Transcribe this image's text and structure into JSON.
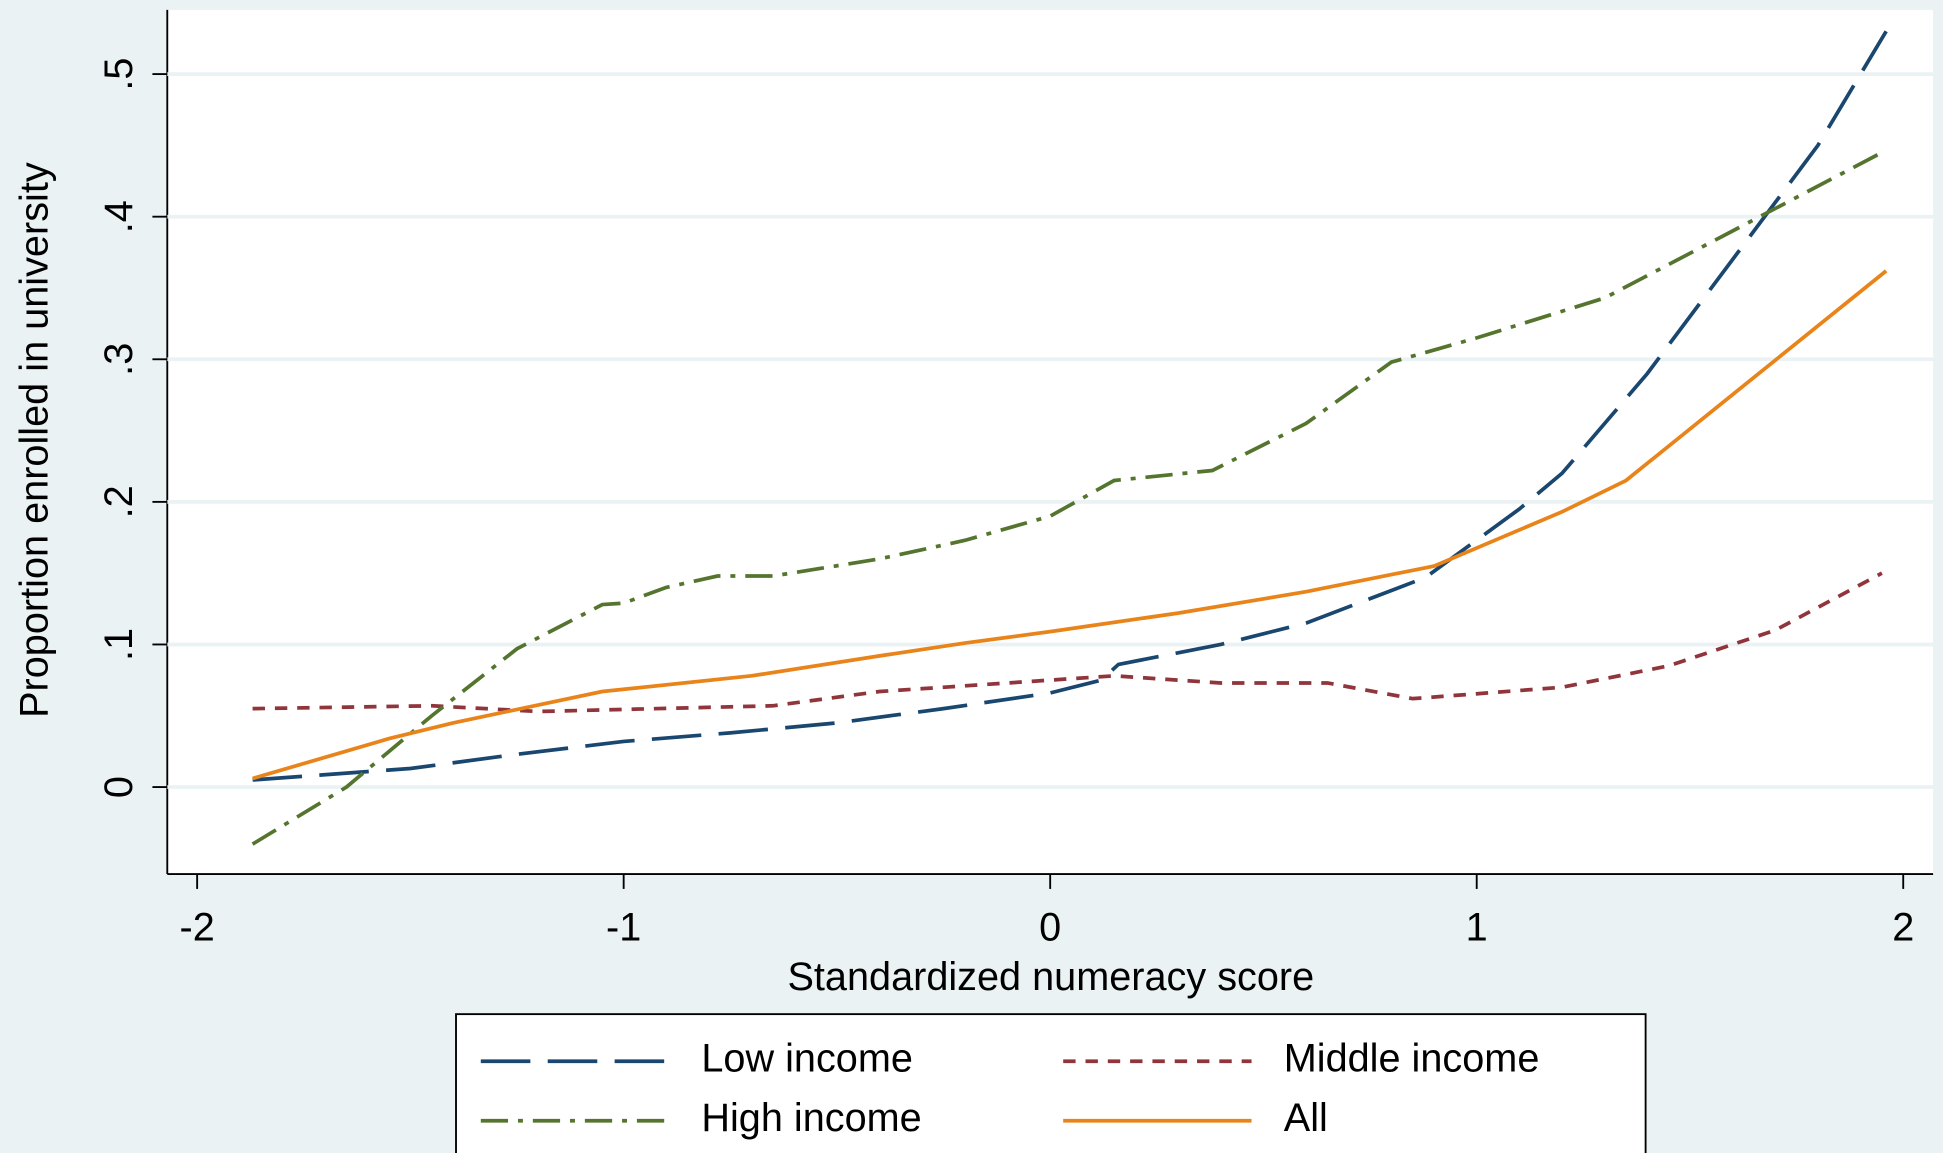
{
  "chart_data": {
    "type": "line",
    "x_label": "Standardized numeracy score",
    "y_label": "Proportion enrolled in university",
    "xlim": [
      -2.07,
      2.07
    ],
    "xticks": [
      -2,
      -1,
      0,
      1,
      2
    ],
    "ylim": [
      -0.061,
      0.545
    ],
    "yticks": [
      0,
      {
        "value": 0.1,
        "label": ".1"
      },
      {
        "value": 0.2,
        "label": ".2"
      },
      {
        "value": 0.3,
        "label": ".3"
      },
      {
        "value": 0.4,
        "label": ".4"
      },
      {
        "value": 0.5,
        "label": ".5"
      }
    ],
    "grid": true,
    "legend": "bottom",
    "series": [
      {
        "name": "Low income",
        "color": "#1a476f",
        "linestyle": "longdash",
        "x": [
          -1.87,
          -1.5,
          -1.25,
          -1.0,
          -0.75,
          -0.5,
          -0.25,
          0,
          0.12,
          0.16,
          0.4,
          0.6,
          0.88,
          1.1,
          1.2,
          1.4,
          1.6,
          1.8,
          1.96
        ],
        "values": [
          0.005,
          0.013,
          0.023,
          0.032,
          0.038,
          0.045,
          0.055,
          0.066,
          0.075,
          0.086,
          0.1,
          0.115,
          0.147,
          0.195,
          0.22,
          0.29,
          0.37,
          0.45,
          0.53
        ]
      },
      {
        "name": "Middle income",
        "color": "#90353b",
        "linestyle": "shortdash",
        "x": [
          -1.87,
          -1.45,
          -1.2,
          -0.65,
          -0.4,
          -0.1,
          0.15,
          0.4,
          0.65,
          0.85,
          1.2,
          1.45,
          1.7,
          1.95
        ],
        "values": [
          0.055,
          0.057,
          0.053,
          0.057,
          0.067,
          0.073,
          0.078,
          0.073,
          0.073,
          0.062,
          0.07,
          0.085,
          0.11,
          0.15
        ]
      },
      {
        "name": "High income",
        "color": "#55752f",
        "linestyle": "dashdot",
        "x": [
          -1.87,
          -1.65,
          -1.45,
          -1.25,
          -1.05,
          -1.0,
          -0.9,
          -0.78,
          -0.65,
          -0.4,
          -0.2,
          0,
          0.15,
          0.38,
          0.6,
          0.8,
          1.0,
          1.3,
          1.6,
          1.95
        ],
        "values": [
          -0.04,
          0.0,
          0.05,
          0.097,
          0.128,
          0.129,
          0.14,
          0.148,
          0.148,
          0.16,
          0.173,
          0.19,
          0.215,
          0.222,
          0.255,
          0.298,
          0.315,
          0.343,
          0.39,
          0.445
        ]
      },
      {
        "name": "All",
        "color": "#e8841a",
        "linestyle": "solid",
        "x": [
          -1.87,
          -1.55,
          -1.4,
          -1.05,
          -0.7,
          -0.4,
          -0.2,
          0,
          0.3,
          0.6,
          0.9,
          1.2,
          1.35,
          1.96
        ],
        "values": [
          0.006,
          0.034,
          0.045,
          0.067,
          0.078,
          0.092,
          0.101,
          0.109,
          0.122,
          0.137,
          0.155,
          0.193,
          0.215,
          0.362
        ]
      }
    ]
  }
}
